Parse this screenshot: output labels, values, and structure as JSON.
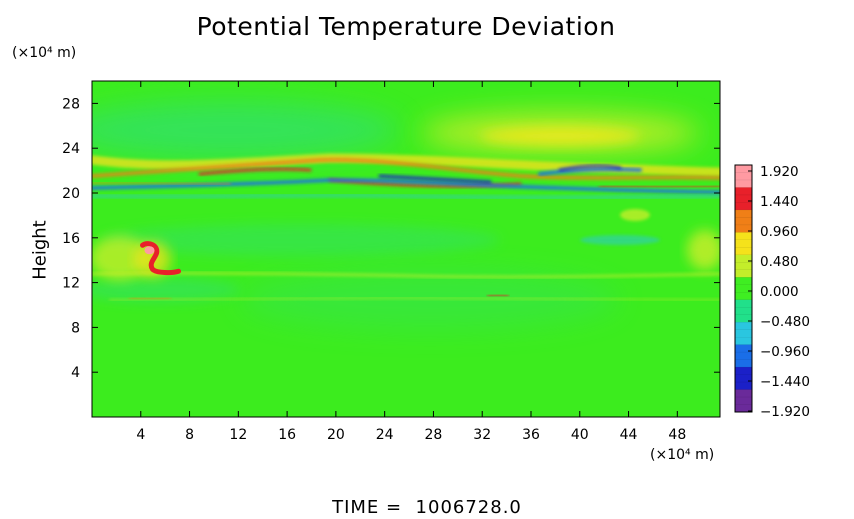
{
  "chart_data": {
    "type": "heatmap",
    "title": "Potential Temperature Deviation",
    "ylabel": "Height",
    "xunit": "(×10⁴ m)",
    "yunit": "(×10⁴ m)",
    "xlim": [
      0,
      51.5
    ],
    "ylim": [
      0,
      30
    ],
    "xticks": [
      4,
      8,
      12,
      16,
      20,
      24,
      28,
      32,
      36,
      40,
      44,
      48
    ],
    "yticks": [
      4,
      8,
      12,
      16,
      20,
      24,
      28
    ],
    "colorbar": {
      "levels": [
        "1.920",
        "1.440",
        "0.960",
        "0.480",
        "0.000",
        "−0.480",
        "−0.960",
        "−1.440",
        "−1.920"
      ],
      "colors": [
        "#ff9aa2",
        "#e8202a",
        "#f07f17",
        "#f5e21b",
        "#c4ee2a",
        "#3fee22",
        "#21e08a",
        "#2ac6e0",
        "#1a6ee8",
        "#1b20c8",
        "#6a2a9a"
      ]
    },
    "features": [
      {
        "kind": "warm-band",
        "x": [
          0,
          51.5
        ],
        "y": 21.4
      },
      {
        "kind": "cold-band",
        "x": [
          0,
          51.5
        ],
        "y": 20.5
      },
      {
        "kind": "warm-blob",
        "x": 4.8,
        "y": 14.8
      },
      {
        "kind": "cold-blob",
        "x": 41,
        "y": 22.2
      },
      {
        "kind": "warm-region",
        "x": 40,
        "y": 24.5
      }
    ]
  },
  "time_label": "TIME =  1006728.0"
}
